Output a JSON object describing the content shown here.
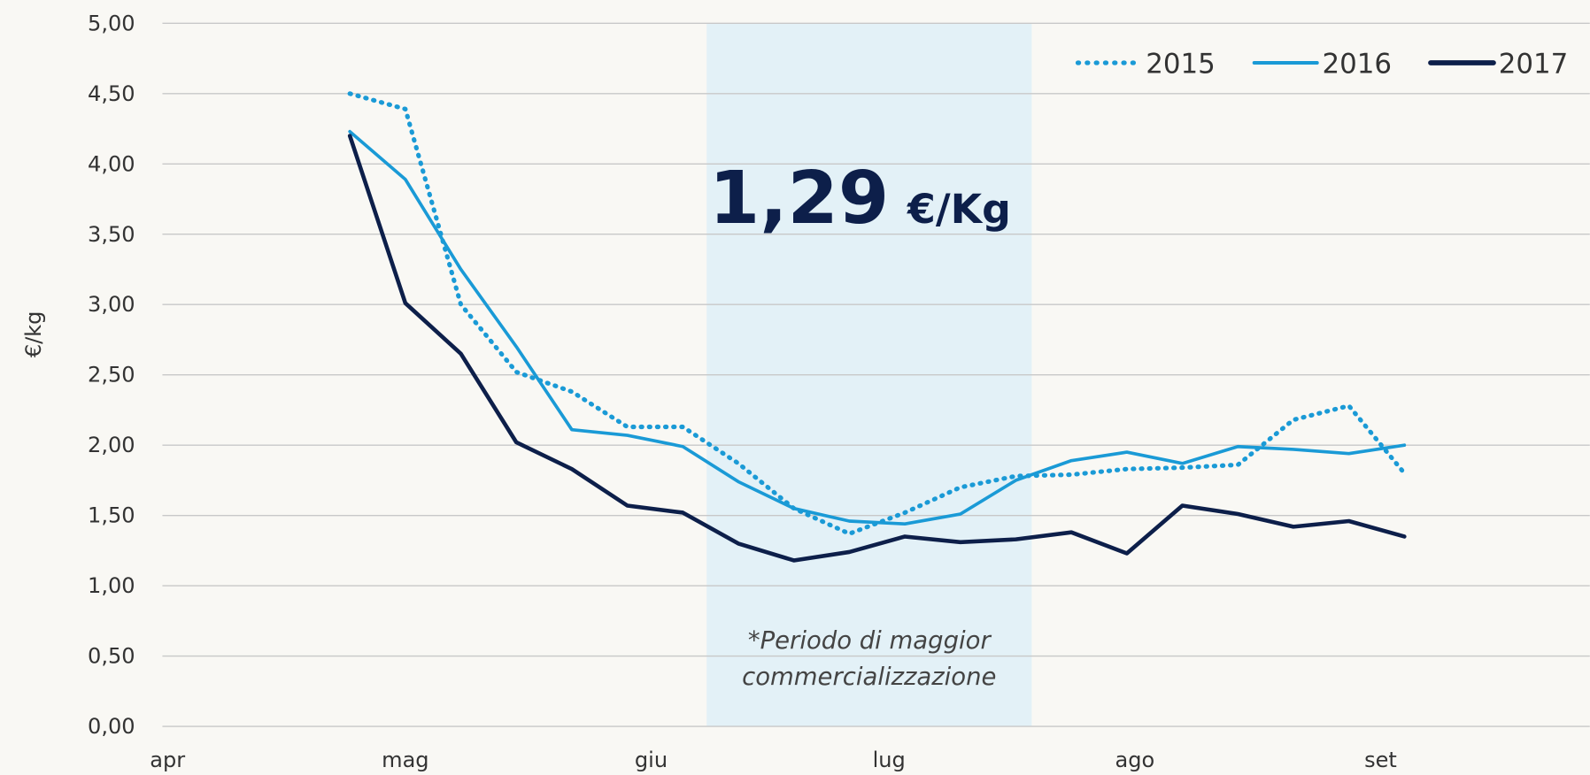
{
  "chart_data": {
    "type": "line",
    "y_label": "€/kg",
    "x": [
      23,
      30,
      37,
      44,
      51,
      58,
      65,
      72,
      79,
      86,
      93,
      100,
      107,
      114,
      121,
      128,
      135,
      142,
      149,
      156
    ],
    "xlim": [
      0,
      179
    ],
    "xticks": [
      {
        "value": 0,
        "label": "apr"
      },
      {
        "value": 30,
        "label": "mag"
      },
      {
        "value": 61,
        "label": "giu"
      },
      {
        "value": 91,
        "label": "lug"
      },
      {
        "value": 122,
        "label": "ago"
      },
      {
        "value": 153,
        "label": "set"
      }
    ],
    "ylim": [
      0,
      5
    ],
    "yticks": [
      {
        "value": 0,
        "label": "0,00"
      },
      {
        "value": 0.5,
        "label": "0,50"
      },
      {
        "value": 1,
        "label": "1,00"
      },
      {
        "value": 1.5,
        "label": "1,50"
      },
      {
        "value": 2,
        "label": "2,00"
      },
      {
        "value": 2.5,
        "label": "2,50"
      },
      {
        "value": 3,
        "label": "3,00"
      },
      {
        "value": 3.5,
        "label": "3,50"
      },
      {
        "value": 4,
        "label": "4,00"
      },
      {
        "value": 4.5,
        "label": "4,50"
      },
      {
        "value": 5,
        "label": "5,00"
      }
    ],
    "grid": true,
    "legend": "top-right",
    "highlight": {
      "x": [
        68,
        109
      ],
      "color": "#e3f1f7",
      "value": "1,29",
      "unit": "€/Kg",
      "note": [
        "*Periodo di maggior",
        "commercializzazione"
      ]
    },
    "series": [
      {
        "name": "2015",
        "color": "#1a9ad6",
        "style": "dotted",
        "values": [
          4.5,
          4.39,
          3.0,
          2.52,
          2.38,
          2.13,
          2.13,
          1.87,
          1.55,
          1.37,
          1.52,
          1.7,
          1.78,
          1.79,
          1.83,
          1.84,
          1.86,
          2.18,
          2.28,
          1.8
        ]
      },
      {
        "name": "2016",
        "color": "#1a9ad6",
        "style": "solid",
        "values": [
          4.23,
          3.89,
          3.25,
          2.7,
          2.11,
          2.07,
          1.99,
          1.74,
          1.55,
          1.46,
          1.44,
          1.51,
          1.75,
          1.89,
          1.95,
          1.87,
          1.99,
          1.97,
          1.94,
          2.0
        ]
      },
      {
        "name": "2017",
        "color": "#0d1f4a",
        "style": "solid",
        "values": [
          4.2,
          3.01,
          2.65,
          2.02,
          1.83,
          1.57,
          1.52,
          1.3,
          1.18,
          1.24,
          1.35,
          1.31,
          1.33,
          1.38,
          1.23,
          1.57,
          1.51,
          1.42,
          1.46,
          1.35
        ]
      }
    ]
  }
}
